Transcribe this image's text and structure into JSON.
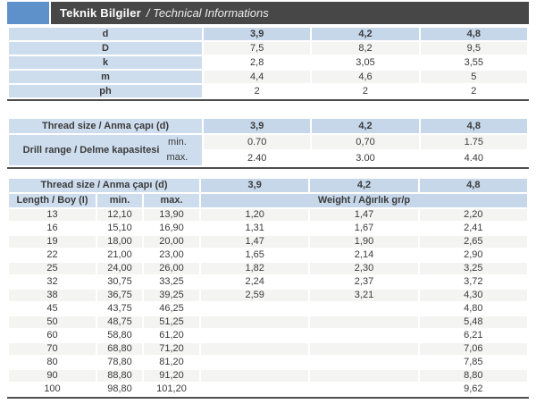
{
  "header": {
    "title_tr": "Teknik Bilgiler",
    "title_en": "/ Technical Informations"
  },
  "colors": {
    "accent": "#5e90c9",
    "bar": "#474747",
    "cellblue": "#cedded",
    "cellblue2": "#c6d7ea",
    "rowgray": "#f4f4f3",
    "line": "#4d4d4d",
    "text": "#3a3a3a"
  },
  "spec_table": {
    "rows": [
      {
        "label": "d",
        "values": [
          "3,9",
          "4,2",
          "4,8"
        ],
        "is_header": true
      },
      {
        "label": "D",
        "values": [
          "7,5",
          "8,2",
          "9,5"
        ]
      },
      {
        "label": "k",
        "values": [
          "2,8",
          "3,05",
          "3,55"
        ]
      },
      {
        "label": "m",
        "values": [
          "4,4",
          "4,6",
          "5"
        ]
      },
      {
        "label": "ph",
        "values": [
          "2",
          "2",
          "2"
        ]
      }
    ]
  },
  "drill_table": {
    "thread_size_label": "Thread size / Anma çapı (d)",
    "thread_sizes": [
      "3,9",
      "4,2",
      "4,8"
    ],
    "drill_range_label": "Drill range / Delme kapasitesi",
    "rows": [
      {
        "label": "min.",
        "values": [
          "0.70",
          "0,70",
          "1.75"
        ]
      },
      {
        "label": "max.",
        "values": [
          "2.40",
          "3.00",
          "4.40"
        ]
      }
    ]
  },
  "weight_table": {
    "thread_size_label": "Thread size / Anma çapı (d)",
    "thread_sizes": [
      "3,9",
      "4,2",
      "4,8"
    ],
    "length_label": "Length / Boy (I)",
    "min_label": "min.",
    "max_label": "max.",
    "weight_label": "Weight / Ağırlık gr/p",
    "rows": [
      {
        "length": "13",
        "min": "12,10",
        "max": "13,90",
        "weights": [
          "1,20",
          "1,47",
          "2,20"
        ]
      },
      {
        "length": "16",
        "min": "15,10",
        "max": "16,90",
        "weights": [
          "1,31",
          "1,67",
          "2,41"
        ]
      },
      {
        "length": "19",
        "min": "18,00",
        "max": "20,00",
        "weights": [
          "1,47",
          "1,90",
          "2,65"
        ]
      },
      {
        "length": "22",
        "min": "21,00",
        "max": "23,00",
        "weights": [
          "1,65",
          "2,14",
          "2,90"
        ]
      },
      {
        "length": "25",
        "min": "24,00",
        "max": "26,00",
        "weights": [
          "1,82",
          "2,30",
          "3,25"
        ]
      },
      {
        "length": "32",
        "min": "30,75",
        "max": "33,25",
        "weights": [
          "2,24",
          "2,37",
          "3,72"
        ]
      },
      {
        "length": "38",
        "min": "36,75",
        "max": "39,25",
        "weights": [
          "2,59",
          "3,21",
          "4,30"
        ]
      },
      {
        "length": "45",
        "min": "43,75",
        "max": "46,25",
        "weights": [
          "",
          "",
          "4,80"
        ]
      },
      {
        "length": "50",
        "min": "48,75",
        "max": "51,25",
        "weights": [
          "",
          "",
          "5,48"
        ]
      },
      {
        "length": "60",
        "min": "58,80",
        "max": "61,20",
        "weights": [
          "",
          "",
          "6,21"
        ]
      },
      {
        "length": "70",
        "min": "68,80",
        "max": "71,20",
        "weights": [
          "",
          "",
          "7,06"
        ]
      },
      {
        "length": "80",
        "min": "78,80",
        "max": "81,20",
        "weights": [
          "",
          "",
          "7,85"
        ]
      },
      {
        "length": "90",
        "min": "88,80",
        "max": "91,20",
        "weights": [
          "",
          "",
          "8,80"
        ]
      },
      {
        "length": "100",
        "min": "98,80",
        "max": "101,20",
        "weights": [
          "",
          "",
          "9,62"
        ]
      }
    ]
  }
}
